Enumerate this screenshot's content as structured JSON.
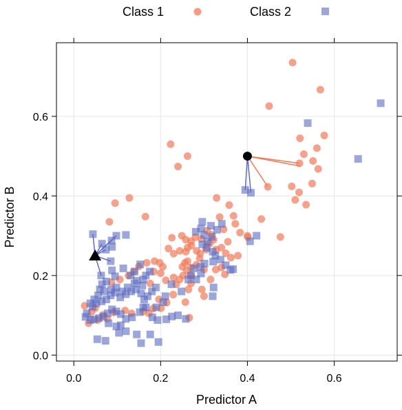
{
  "chart_data": {
    "type": "scatter",
    "xlabel": "Predictor A",
    "ylabel": "Predictor B",
    "xlim": [
      -0.04,
      0.745
    ],
    "ylim": [
      -0.015,
      0.785
    ],
    "xticks": [
      "0.0",
      "0.2",
      "0.4",
      "0.6"
    ],
    "yticks": [
      "0.0",
      "0.2",
      "0.4",
      "0.6"
    ],
    "grid": true,
    "legend_position": "top",
    "series": [
      {
        "name": "Class 1",
        "marker": "circle",
        "color": "#f07a5a",
        "points": [
          [
            0.504,
            0.735
          ],
          [
            0.568,
            0.667
          ],
          [
            0.45,
            0.626
          ],
          [
            0.223,
            0.53
          ],
          [
            0.262,
            0.5
          ],
          [
            0.24,
            0.474
          ],
          [
            0.521,
            0.545
          ],
          [
            0.53,
            0.505
          ],
          [
            0.56,
            0.52
          ],
          [
            0.577,
            0.552
          ],
          [
            0.551,
            0.488
          ],
          [
            0.52,
            0.482
          ],
          [
            0.549,
            0.431
          ],
          [
            0.563,
            0.468
          ],
          [
            0.502,
            0.424
          ],
          [
            0.519,
            0.409
          ],
          [
            0.51,
            0.39
          ],
          [
            0.535,
            0.378
          ],
          [
            0.432,
            0.342
          ],
          [
            0.447,
            0.423
          ],
          [
            0.476,
            0.297
          ],
          [
            0.128,
            0.395
          ],
          [
            0.082,
            0.335
          ],
          [
            0.095,
            0.382
          ],
          [
            0.165,
            0.348
          ],
          [
            0.329,
            0.395
          ],
          [
            0.358,
            0.377
          ],
          [
            0.368,
            0.35
          ],
          [
            0.345,
            0.316
          ],
          [
            0.372,
            0.33
          ],
          [
            0.336,
            0.347
          ],
          [
            0.307,
            0.313
          ],
          [
            0.317,
            0.302
          ],
          [
            0.294,
            0.292
          ],
          [
            0.28,
            0.296
          ],
          [
            0.27,
            0.286
          ],
          [
            0.258,
            0.29
          ],
          [
            0.249,
            0.3
          ],
          [
            0.226,
            0.295
          ],
          [
            0.218,
            0.268
          ],
          [
            0.23,
            0.255
          ],
          [
            0.244,
            0.262
          ],
          [
            0.258,
            0.26
          ],
          [
            0.262,
            0.27
          ],
          [
            0.271,
            0.275
          ],
          [
            0.283,
            0.262
          ],
          [
            0.291,
            0.255
          ],
          [
            0.305,
            0.265
          ],
          [
            0.313,
            0.28
          ],
          [
            0.322,
            0.29
          ],
          [
            0.328,
            0.265
          ],
          [
            0.34,
            0.27
          ],
          [
            0.355,
            0.285
          ],
          [
            0.35,
            0.256
          ],
          [
            0.362,
            0.245
          ],
          [
            0.378,
            0.25
          ],
          [
            0.4,
            0.3
          ],
          [
            0.383,
            0.308
          ],
          [
            0.401,
            0.296
          ],
          [
            0.29,
            0.243
          ],
          [
            0.282,
            0.227
          ],
          [
            0.27,
            0.22
          ],
          [
            0.26,
            0.213
          ],
          [
            0.25,
            0.222
          ],
          [
            0.256,
            0.232
          ],
          [
            0.262,
            0.236
          ],
          [
            0.252,
            0.2
          ],
          [
            0.244,
            0.19
          ],
          [
            0.23,
            0.195
          ],
          [
            0.236,
            0.178
          ],
          [
            0.212,
            0.188
          ],
          [
            0.2,
            0.206
          ],
          [
            0.184,
            0.21
          ],
          [
            0.176,
            0.18
          ],
          [
            0.168,
            0.232
          ],
          [
            0.186,
            0.236
          ],
          [
            0.198,
            0.232
          ],
          [
            0.205,
            0.222
          ],
          [
            0.15,
            0.223
          ],
          [
            0.138,
            0.21
          ],
          [
            0.126,
            0.2
          ],
          [
            0.106,
            0.19
          ],
          [
            0.087,
            0.183
          ],
          [
            0.27,
            0.2
          ],
          [
            0.3,
            0.215
          ],
          [
            0.315,
            0.19
          ],
          [
            0.327,
            0.215
          ],
          [
            0.34,
            0.22
          ],
          [
            0.348,
            0.203
          ],
          [
            0.295,
            0.165
          ],
          [
            0.3,
            0.148
          ],
          [
            0.27,
            0.18
          ],
          [
            0.264,
            0.165
          ],
          [
            0.257,
            0.133
          ],
          [
            0.229,
            0.152
          ],
          [
            0.214,
            0.132
          ],
          [
            0.196,
            0.14
          ],
          [
            0.183,
            0.117
          ],
          [
            0.201,
            0.118
          ],
          [
            0.16,
            0.11
          ],
          [
            0.173,
            0.105
          ],
          [
            0.133,
            0.105
          ],
          [
            0.118,
            0.112
          ],
          [
            0.092,
            0.107
          ],
          [
            0.077,
            0.091
          ],
          [
            0.055,
            0.088
          ],
          [
            0.067,
            0.101
          ],
          [
            0.049,
            0.118
          ],
          [
            0.034,
            0.08
          ],
          [
            0.025,
            0.124
          ],
          [
            0.041,
            0.109
          ],
          [
            0.266,
            0.094
          ]
        ]
      },
      {
        "name": "Class 2",
        "marker": "square",
        "color": "#5c6bc0",
        "points": [
          [
            0.707,
            0.633
          ],
          [
            0.655,
            0.493
          ],
          [
            0.539,
            0.583
          ],
          [
            0.395,
            0.415
          ],
          [
            0.408,
            0.408
          ],
          [
            0.406,
            0.286
          ],
          [
            0.421,
            0.3
          ],
          [
            0.341,
            0.33
          ],
          [
            0.33,
            0.315
          ],
          [
            0.316,
            0.325
          ],
          [
            0.3,
            0.302
          ],
          [
            0.296,
            0.335
          ],
          [
            0.293,
            0.318
          ],
          [
            0.281,
            0.31
          ],
          [
            0.318,
            0.297
          ],
          [
            0.308,
            0.285
          ],
          [
            0.306,
            0.27
          ],
          [
            0.296,
            0.278
          ],
          [
            0.32,
            0.26
          ],
          [
            0.326,
            0.25
          ],
          [
            0.338,
            0.24
          ],
          [
            0.321,
            0.235
          ],
          [
            0.35,
            0.226
          ],
          [
            0.367,
            0.216
          ],
          [
            0.361,
            0.214
          ],
          [
            0.301,
            0.23
          ],
          [
            0.292,
            0.222
          ],
          [
            0.276,
            0.218
          ],
          [
            0.27,
            0.2
          ],
          [
            0.264,
            0.19
          ],
          [
            0.282,
            0.19
          ],
          [
            0.293,
            0.205
          ],
          [
            0.322,
            0.17
          ],
          [
            0.32,
            0.148
          ],
          [
            0.258,
            0.091
          ],
          [
            0.24,
            0.1
          ],
          [
            0.226,
            0.097
          ],
          [
            0.213,
            0.09
          ],
          [
            0.193,
            0.088
          ],
          [
            0.181,
            0.095
          ],
          [
            0.19,
            0.12
          ],
          [
            0.206,
            0.133
          ],
          [
            0.166,
            0.12
          ],
          [
            0.152,
            0.108
          ],
          [
            0.134,
            0.095
          ],
          [
            0.12,
            0.091
          ],
          [
            0.108,
            0.103
          ],
          [
            0.098,
            0.11
          ],
          [
            0.088,
            0.115
          ],
          [
            0.078,
            0.105
          ],
          [
            0.068,
            0.097
          ],
          [
            0.058,
            0.093
          ],
          [
            0.046,
            0.09
          ],
          [
            0.038,
            0.088
          ],
          [
            0.027,
            0.096
          ],
          [
            0.03,
            0.105
          ],
          [
            0.043,
            0.122
          ],
          [
            0.052,
            0.13
          ],
          [
            0.064,
            0.135
          ],
          [
            0.075,
            0.14
          ],
          [
            0.085,
            0.15
          ],
          [
            0.095,
            0.157
          ],
          [
            0.107,
            0.145
          ],
          [
            0.12,
            0.153
          ],
          [
            0.132,
            0.16
          ],
          [
            0.143,
            0.165
          ],
          [
            0.155,
            0.155
          ],
          [
            0.162,
            0.14
          ],
          [
            0.17,
            0.148
          ],
          [
            0.18,
            0.16
          ],
          [
            0.189,
            0.17
          ],
          [
            0.158,
            0.175
          ],
          [
            0.14,
            0.18
          ],
          [
            0.124,
            0.17
          ],
          [
            0.112,
            0.16
          ],
          [
            0.098,
            0.17
          ],
          [
            0.086,
            0.165
          ],
          [
            0.07,
            0.16
          ],
          [
            0.06,
            0.165
          ],
          [
            0.038,
            0.13
          ],
          [
            0.047,
            0.14
          ],
          [
            0.056,
            0.15
          ],
          [
            0.065,
            0.178
          ],
          [
            0.075,
            0.185
          ],
          [
            0.145,
            0.187
          ],
          [
            0.16,
            0.19
          ],
          [
            0.166,
            0.2
          ],
          [
            0.175,
            0.21
          ],
          [
            0.14,
            0.21
          ],
          [
            0.131,
            0.2
          ],
          [
            0.095,
            0.198
          ],
          [
            0.088,
            0.213
          ],
          [
            0.114,
            0.218
          ],
          [
            0.153,
            0.228
          ],
          [
            0.098,
            0.3
          ],
          [
            0.087,
            0.288
          ],
          [
            0.074,
            0.265
          ],
          [
            0.065,
            0.28
          ],
          [
            0.044,
            0.304
          ],
          [
            0.12,
            0.302
          ],
          [
            0.088,
            0.272
          ],
          [
            0.085,
            0.236
          ],
          [
            0.063,
            0.2
          ],
          [
            0.08,
            0.08
          ],
          [
            0.098,
            0.072
          ],
          [
            0.108,
            0.075
          ],
          [
            0.12,
            0.06
          ],
          [
            0.145,
            0.052
          ],
          [
            0.155,
            0.03
          ],
          [
            0.176,
            0.052
          ],
          [
            0.195,
            0.033
          ],
          [
            0.073,
            0.036
          ],
          [
            0.054,
            0.04
          ],
          [
            0.104,
            0.056
          ],
          [
            0.16,
            0.12
          ],
          [
            0.211,
            0.148
          ],
          [
            0.225,
            0.178
          ],
          [
            0.248,
            0.16
          ]
        ]
      }
    ],
    "special_points": [
      {
        "marker": "triangle",
        "x": 0.049,
        "y": 0.25,
        "neighbors": [
          [
            0.044,
            0.304
          ],
          [
            0.065,
            0.28
          ],
          [
            0.074,
            0.265
          ],
          [
            0.085,
            0.236
          ],
          [
            0.063,
            0.2
          ],
          [
            0.087,
            0.288
          ],
          [
            0.098,
            0.3
          ]
        ]
      },
      {
        "marker": "filled-circle",
        "x": 0.4,
        "y": 0.5,
        "neighbors": [
          [
            0.395,
            0.415
          ],
          [
            0.408,
            0.408
          ],
          [
            0.52,
            0.482
          ],
          [
            0.521,
            0.475
          ],
          [
            0.447,
            0.423
          ]
        ]
      }
    ]
  },
  "colors": {
    "class1": "#f07a5a",
    "class2": "#5c6bc0",
    "grid": "#e6e6e6",
    "axis": "#000000"
  }
}
